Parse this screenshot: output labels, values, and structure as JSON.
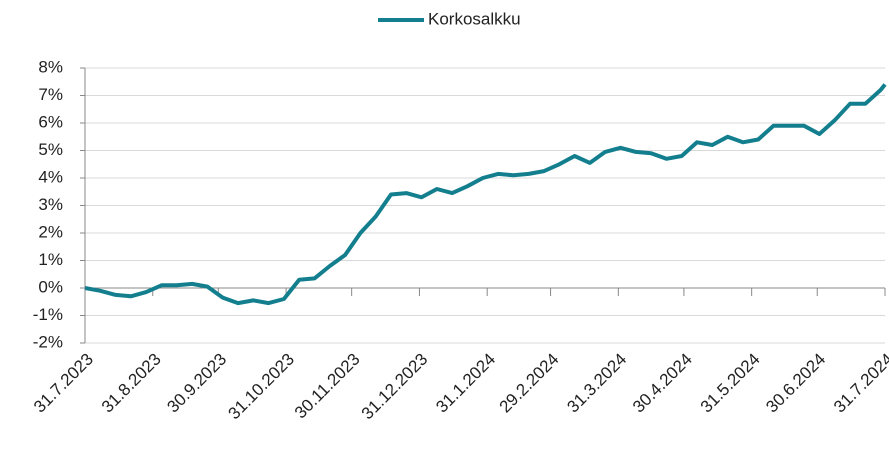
{
  "chart_data": {
    "type": "line",
    "x": [
      "31.7.2023",
      "7.8.2023",
      "14.8.2023",
      "21.8.2023",
      "28.8.2023",
      "4.9.2023",
      "11.9.2023",
      "18.9.2023",
      "25.9.2023",
      "2.10.2023",
      "9.10.2023",
      "16.10.2023",
      "23.10.2023",
      "30.10.2023",
      "6.11.2023",
      "13.11.2023",
      "20.11.2023",
      "27.11.2023",
      "4.12.2023",
      "11.12.2023",
      "18.12.2023",
      "25.12.2023",
      "1.1.2024",
      "8.1.2024",
      "15.1.2024",
      "22.1.2024",
      "29.1.2024",
      "5.2.2024",
      "12.2.2024",
      "19.2.2024",
      "26.2.2024",
      "4.3.2024",
      "11.3.2024",
      "18.3.2024",
      "25.3.2024",
      "1.4.2024",
      "8.4.2024",
      "15.4.2024",
      "22.4.2024",
      "29.4.2024",
      "6.5.2024",
      "13.5.2024",
      "20.5.2024",
      "27.5.2024",
      "3.6.2024",
      "10.6.2024",
      "17.6.2024",
      "24.6.2024",
      "1.7.2024",
      "8.7.2024",
      "15.7.2024",
      "22.7.2024",
      "29.7.2024",
      "31.7.2024"
    ],
    "series": [
      {
        "name": "Korkosalkku",
        "color": "#137f8e",
        "values": [
          0.0,
          -0.1,
          -0.25,
          -0.3,
          -0.15,
          0.1,
          0.1,
          0.15,
          0.05,
          -0.35,
          -0.55,
          -0.45,
          -0.55,
          -0.4,
          0.3,
          0.35,
          0.8,
          1.2,
          2.0,
          2.6,
          3.4,
          3.45,
          3.3,
          3.6,
          3.45,
          3.7,
          4.0,
          4.15,
          4.1,
          4.15,
          4.25,
          4.5,
          4.8,
          4.55,
          4.95,
          5.1,
          4.95,
          4.9,
          4.7,
          4.8,
          5.3,
          5.2,
          5.5,
          5.3,
          5.4,
          5.9,
          5.9,
          5.9,
          5.6,
          6.1,
          6.7,
          6.7,
          7.2,
          7.4
        ]
      }
    ],
    "xlim": [
      "31.7.2023",
      "31.7.2024"
    ],
    "xticks": [
      "31.7.2023",
      "31.8.2023",
      "30.9.2023",
      "31.10.2023",
      "30.11.2023",
      "31.12.2023",
      "31.1.2024",
      "29.2.2024",
      "31.3.2024",
      "30.4.2024",
      "31.5.2024",
      "30.6.2024",
      "31.7.2024"
    ],
    "ylim": [
      -2,
      8
    ],
    "yticks": [
      {
        "value": -2,
        "label": "-2%"
      },
      {
        "value": -1,
        "label": "-1%"
      },
      {
        "value": 0,
        "label": "0%"
      },
      {
        "value": 1,
        "label": "1%"
      },
      {
        "value": 2,
        "label": "2%"
      },
      {
        "value": 3,
        "label": "3%"
      },
      {
        "value": 4,
        "label": "4%"
      },
      {
        "value": 5,
        "label": "5%"
      },
      {
        "value": 6,
        "label": "6%"
      },
      {
        "value": 7,
        "label": "7%"
      },
      {
        "value": 8,
        "label": "8%"
      }
    ],
    "grid": true,
    "legend": "top"
  }
}
